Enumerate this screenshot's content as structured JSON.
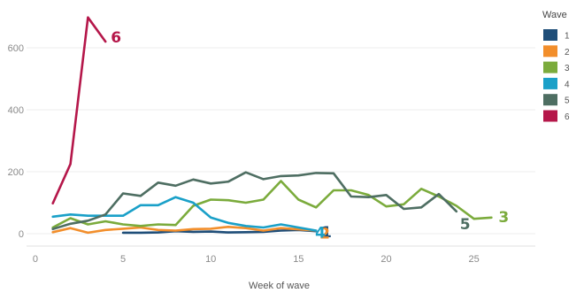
{
  "chart_data": {
    "type": "line",
    "xlabel": "Week of wave",
    "ylabel": "",
    "xlim": [
      -0.5,
      28.5
    ],
    "ylim": [
      -40,
      720
    ],
    "xticks": [
      0,
      5,
      10,
      15,
      20,
      25
    ],
    "yticks": [
      0,
      200,
      400,
      600
    ],
    "grid": "horizontal",
    "legend": {
      "title": "Wave",
      "position": "right"
    },
    "series": [
      {
        "name": "1",
        "color": "#1f4e79",
        "end_label": "1",
        "x": [
          5,
          6,
          7,
          8,
          9,
          10,
          11,
          12,
          13,
          14,
          15,
          16
        ],
        "y": [
          3,
          3,
          4,
          8,
          6,
          7,
          4,
          5,
          6,
          10,
          12,
          8
        ]
      },
      {
        "name": "2",
        "color": "#f28e2b",
        "end_label": "2",
        "x": [
          1,
          2,
          3,
          4,
          5,
          6,
          7,
          8,
          9,
          10,
          11,
          12,
          13,
          14,
          15,
          16
        ],
        "y": [
          5,
          18,
          3,
          12,
          16,
          20,
          12,
          10,
          15,
          16,
          22,
          18,
          10,
          18,
          14,
          10
        ]
      },
      {
        "name": "3",
        "color": "#7bab3c",
        "end_label": "3",
        "x": [
          1,
          2,
          3,
          4,
          5,
          6,
          7,
          8,
          9,
          10,
          11,
          12,
          13,
          14,
          15,
          16,
          17,
          18,
          19,
          20,
          21,
          22,
          23,
          24,
          25,
          26
        ],
        "y": [
          20,
          50,
          30,
          40,
          30,
          25,
          30,
          28,
          90,
          110,
          108,
          100,
          110,
          170,
          110,
          85,
          140,
          140,
          125,
          88,
          95,
          145,
          120,
          90,
          48,
          52
        ]
      },
      {
        "name": "4",
        "color": "#1aa0c8",
        "end_label": "4",
        "x": [
          1,
          2,
          3,
          4,
          5,
          6,
          7,
          8,
          9,
          10,
          11,
          12,
          13,
          14,
          15,
          16
        ],
        "y": [
          55,
          62,
          58,
          58,
          58,
          92,
          92,
          118,
          100,
          52,
          35,
          25,
          20,
          30,
          20,
          10
        ]
      },
      {
        "name": "5",
        "color": "#4e6e62",
        "end_label": "5",
        "x": [
          1,
          2,
          3,
          4,
          5,
          6,
          7,
          8,
          9,
          10,
          11,
          12,
          13,
          14,
          15,
          16,
          17,
          18,
          19,
          20,
          21,
          22,
          23,
          24
        ],
        "y": [
          15,
          32,
          42,
          62,
          130,
          122,
          165,
          155,
          175,
          162,
          168,
          198,
          176,
          186,
          188,
          196,
          195,
          120,
          118,
          125,
          80,
          85,
          128,
          72
        ]
      },
      {
        "name": "6",
        "color": "#b5174a",
        "end_label": "6",
        "x": [
          1,
          2,
          3,
          4
        ],
        "y": [
          98,
          225,
          698,
          620
        ]
      }
    ]
  }
}
